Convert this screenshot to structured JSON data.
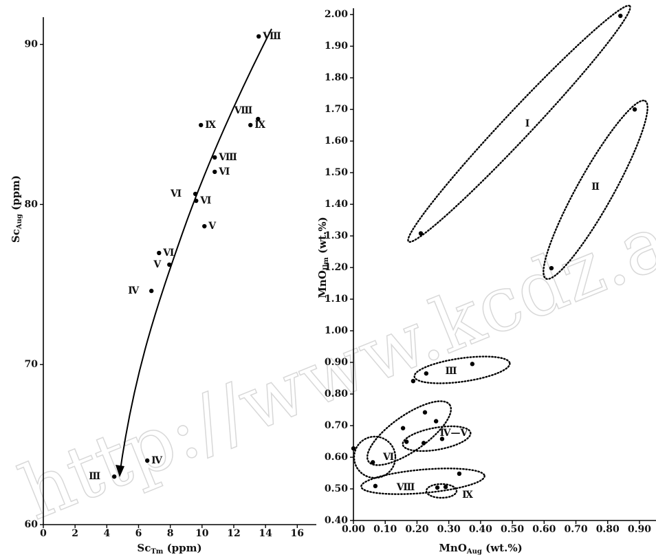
{
  "chart_data": [
    {
      "type": "scatter",
      "x_label": {
        "main": "Sc",
        "sub": "Tm",
        "unit": "(ppm)"
      },
      "y_label": {
        "main": "Sc",
        "sub": "Aug",
        "unit": "(ppm)"
      },
      "color": "#000000",
      "x": [
        13.57,
        9.93,
        13.53,
        13.05,
        10.8,
        10.8,
        9.58,
        9.63,
        10.15,
        7.29,
        7.94,
        6.81,
        6.55,
        4.47
      ],
      "values": [
        90.5,
        84.96,
        85.34,
        84.96,
        82.94,
        82.04,
        80.66,
        80.23,
        78.64,
        76.97,
        76.24,
        74.6,
        64.0,
        63.0
      ],
      "point_labels": [
        "Ⅷ",
        "Ⅸ",
        "Ⅷ",
        "Ⅸ",
        "Ⅷ",
        "Ⅵ",
        "Ⅵ",
        "Ⅵ",
        "Ⅴ",
        "Ⅵ",
        "Ⅴ",
        "Ⅳ",
        "Ⅳ",
        "Ⅲ"
      ],
      "xlim": [
        0,
        17.2
      ],
      "ylim": [
        60,
        91.7
      ],
      "xticks": [
        0,
        2,
        4,
        6,
        8,
        10,
        12,
        14,
        16
      ],
      "yticks": [
        60,
        70,
        80,
        90
      ]
    },
    {
      "type": "scatter",
      "x_label": {
        "main": "MnO",
        "sub": "Aug",
        "unit": "(wt.%)"
      },
      "y_label": {
        "main": "MnO",
        "sub": "Ilm",
        "unit": "(wt.%)"
      },
      "color": "#000000",
      "x": [
        0.84,
        0.885,
        0.212,
        0.623,
        0.374,
        0.229,
        0.188,
        0.225,
        0.156,
        0.26,
        0.167,
        0.221,
        0.279,
        0.0,
        0.061,
        0.069,
        0.333,
        0.264,
        0.29
      ],
      "values": [
        1.996,
        1.7,
        1.308,
        1.198,
        0.895,
        0.865,
        0.841,
        0.742,
        0.692,
        0.714,
        0.649,
        0.645,
        0.658,
        0.628,
        0.584,
        0.509,
        0.548,
        0.504,
        0.506
      ],
      "group_labels": [
        "Ⅰ",
        "Ⅱ",
        "Ⅲ",
        "Ⅳ—Ⅴ",
        "Ⅵ",
        "Ⅷ",
        "Ⅸ"
      ],
      "xlim": [
        0,
        0.952
      ],
      "ylim": [
        0.4,
        2.02
      ],
      "xticks": [
        {
          "value": 0,
          "label": "0.00"
        },
        {
          "value": 0.1,
          "label": "0.10"
        },
        {
          "value": 0.2,
          "label": "0.20"
        },
        {
          "value": 0.3,
          "label": "0.30"
        },
        {
          "value": 0.4,
          "label": "0.40"
        },
        {
          "value": 0.5,
          "label": "0.50"
        },
        {
          "value": 0.6,
          "label": "0.60"
        },
        {
          "value": 0.7,
          "label": "0.70"
        },
        {
          "value": 0.8,
          "label": "0.80"
        },
        {
          "value": 0.9,
          "label": "0.90"
        }
      ],
      "yticks": [
        {
          "value": 0.4,
          "label": "0.40"
        },
        {
          "value": 0.5,
          "label": "0.50"
        },
        {
          "value": 0.6,
          "label": "0.60"
        },
        {
          "value": 0.7,
          "label": "0.70"
        },
        {
          "value": 0.8,
          "label": "0.80"
        },
        {
          "value": 0.9,
          "label": "0.90"
        },
        {
          "value": 1.0,
          "label": "1.00"
        },
        {
          "value": 1.1,
          "label": "1.10"
        },
        {
          "value": 1.2,
          "label": "1.20"
        },
        {
          "value": 1.3,
          "label": "1.30"
        },
        {
          "value": 1.4,
          "label": "1.40"
        },
        {
          "value": 1.5,
          "label": "1.50"
        },
        {
          "value": 1.6,
          "label": "1.60"
        },
        {
          "value": 1.7,
          "label": "1.70"
        },
        {
          "value": 1.8,
          "label": "1.80"
        },
        {
          "value": 1.9,
          "label": "1.90"
        },
        {
          "value": 2.0,
          "label": "2.00"
        }
      ]
    }
  ],
  "watermark": "http://www.kcdz.ac.cn/"
}
